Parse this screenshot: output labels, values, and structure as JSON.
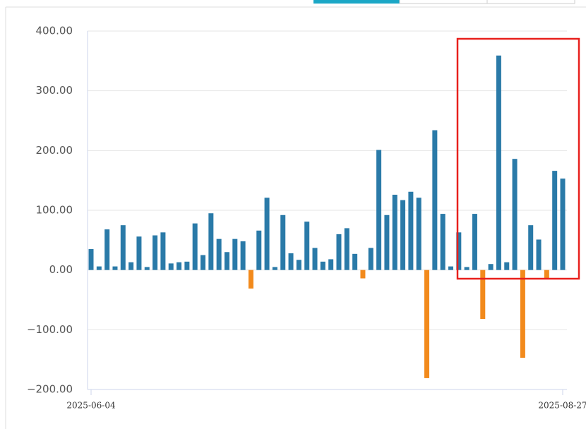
{
  "chart_data": {
    "type": "bar",
    "categories": [
      "2025-06-04",
      null,
      null,
      null,
      null,
      null,
      null,
      null,
      null,
      null,
      null,
      null,
      null,
      null,
      null,
      null,
      null,
      null,
      null,
      null,
      null,
      null,
      null,
      null,
      null,
      null,
      null,
      null,
      null,
      null,
      null,
      null,
      null,
      null,
      null,
      null,
      null,
      null,
      null,
      null,
      null,
      null,
      null,
      null,
      null,
      null,
      null,
      null,
      null,
      null,
      null,
      null,
      null,
      null,
      null,
      null,
      null,
      null,
      null,
      "2025-08-27"
    ],
    "values": [
      35,
      6,
      68,
      6,
      75,
      13,
      56,
      5,
      58,
      63,
      11,
      13,
      14,
      78,
      25,
      95,
      52,
      30,
      52,
      48,
      -31,
      66,
      121,
      5,
      92,
      28,
      17,
      81,
      37,
      14,
      18,
      60,
      70,
      27,
      -14,
      37,
      201,
      92,
      126,
      117,
      131,
      121,
      -181,
      234,
      94,
      6,
      63,
      5,
      94,
      -82,
      10,
      359,
      13,
      186,
      -147,
      75,
      51,
      -15,
      166,
      153
    ],
    "color": "#2a7aa8",
    "negative_color": "#f28a1c",
    "ylim": [
      -200,
      400
    ],
    "yticks": [
      {
        "value": -200,
        "label": "−200.00"
      },
      {
        "value": -100,
        "label": "−100.00"
      },
      {
        "value": 0,
        "label": "0.00"
      },
      {
        "value": 100,
        "label": "100.00"
      },
      {
        "value": 200,
        "label": "200.00"
      },
      {
        "value": 300,
        "label": "300.00"
      },
      {
        "value": 400,
        "label": "400.00"
      }
    ],
    "grid": true
  }
}
